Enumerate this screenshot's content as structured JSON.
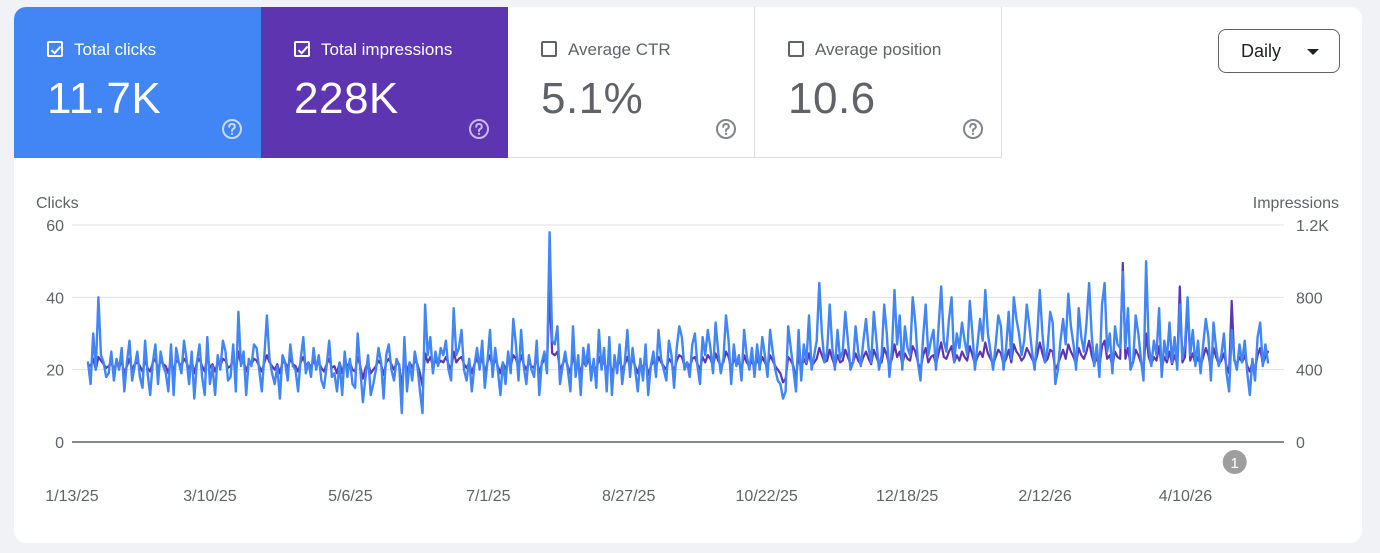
{
  "cards": [
    {
      "label": "Total clicks",
      "value": "11.7K",
      "checked": true,
      "color": "#4285f4"
    },
    {
      "label": "Total impressions",
      "value": "228K",
      "checked": true,
      "color": "#5e35b1"
    },
    {
      "label": "Average CTR",
      "value": "5.1%",
      "checked": false
    },
    {
      "label": "Average position",
      "value": "10.6",
      "checked": false
    }
  ],
  "period_selector": {
    "label": "Daily"
  },
  "annotation": {
    "label": "1",
    "date": "4/30/26"
  },
  "chart_data": {
    "type": "line",
    "x_start": "1/13/25",
    "x_end": "5/20/26",
    "x_tick_labels": [
      "1/13/25",
      "3/10/25",
      "5/6/25",
      "7/1/25",
      "8/27/25",
      "10/22/25",
      "12/18/25",
      "2/12/26",
      "4/10/26"
    ],
    "left_axis": {
      "label": "Clicks",
      "ticks": [
        "0",
        "20",
        "40",
        "60"
      ],
      "range": [
        0,
        60
      ]
    },
    "right_axis": {
      "label": "Impressions",
      "ticks": [
        "0",
        "400",
        "800",
        "1.2K"
      ],
      "range": [
        0,
        1200
      ]
    },
    "grid": true,
    "series": [
      {
        "axis": "left",
        "color": "#4285f4",
        "values": [
          22,
          16,
          30,
          20,
          40,
          24,
          22,
          18,
          19,
          25,
          17,
          23,
          20,
          26,
          14,
          22,
          28,
          17,
          21,
          25,
          18,
          15,
          28,
          19,
          13,
          22,
          27,
          16,
          25,
          21,
          19,
          14,
          27,
          13,
          26,
          22,
          19,
          28,
          23,
          16,
          25,
          12,
          22,
          27,
          18,
          13,
          29,
          16,
          21,
          13,
          24,
          20,
          28,
          25,
          17,
          18,
          27,
          14,
          36,
          21,
          25,
          13,
          23,
          21,
          27,
          26,
          20,
          14,
          24,
          35,
          23,
          19,
          16,
          21,
          12,
          24,
          22,
          17,
          27,
          21,
          20,
          14,
          23,
          29,
          19,
          22,
          18,
          26,
          20,
          24,
          17,
          15,
          21,
          28,
          18,
          19,
          14,
          22,
          13,
          25,
          18,
          23,
          16,
          15,
          30,
          20,
          11,
          18,
          24,
          13,
          16,
          20,
          26,
          22,
          12,
          24,
          27,
          20,
          17,
          23,
          21,
          8,
          29,
          14,
          22,
          17,
          25,
          21,
          14,
          8,
          38,
          24,
          29,
          19,
          25,
          21,
          26,
          24,
          28,
          20,
          17,
          37,
          24,
          26,
          31,
          20,
          17,
          23,
          14,
          21,
          26,
          20,
          28,
          15,
          22,
          31,
          18,
          26,
          20,
          13,
          22,
          16,
          25,
          19,
          34,
          27,
          17,
          31,
          21,
          16,
          24,
          20,
          18,
          28,
          13,
          22,
          25,
          19,
          58,
          28,
          27,
          32,
          16,
          21,
          25,
          20,
          14,
          32,
          18,
          24,
          13,
          26,
          21,
          27,
          17,
          23,
          15,
          31,
          20,
          26,
          14,
          29,
          13,
          24,
          19,
          27,
          16,
          22,
          31,
          18,
          26,
          20,
          14,
          23,
          17,
          27,
          13,
          21,
          25,
          18,
          31,
          23,
          20,
          17,
          28,
          24,
          15,
          26,
          32,
          29,
          20,
          22,
          18,
          27,
          30,
          21,
          16,
          29,
          24,
          31,
          26,
          19,
          33,
          25,
          19,
          23,
          35,
          28,
          16,
          27,
          21,
          24,
          17,
          31,
          24,
          20,
          26,
          18,
          27,
          20,
          29,
          24,
          18,
          31,
          25,
          20,
          17,
          16,
          12,
          14,
          32,
          26,
          20,
          14,
          31,
          17,
          27,
          22,
          35,
          20,
          24,
          28,
          44,
          30,
          22,
          25,
          38,
          26,
          20,
          31,
          23,
          25,
          36,
          28,
          20,
          22,
          32,
          25,
          21,
          28,
          34,
          26,
          22,
          36,
          28,
          20,
          24,
          38,
          30,
          18,
          26,
          42,
          27,
          35,
          20,
          32,
          26,
          24,
          40,
          33,
          22,
          17,
          29,
          38,
          24,
          28,
          31,
          20,
          32,
          43,
          28,
          25,
          34,
          40,
          22,
          30,
          26,
          33,
          28,
          24,
          39,
          30,
          20,
          27,
          34,
          28,
          42,
          30,
          25,
          20,
          27,
          35,
          32,
          20,
          26,
          36,
          23,
          40,
          34,
          30,
          24,
          28,
          38,
          32,
          25,
          20,
          29,
          42,
          30,
          22,
          26,
          36,
          33,
          16,
          20,
          28,
          34,
          27,
          41,
          32,
          27,
          20,
          37,
          29,
          25,
          33,
          44,
          30,
          21,
          27,
          18,
          38,
          44,
          25,
          30,
          19,
          32,
          27,
          26,
          47,
          26,
          37,
          20,
          22,
          35,
          30,
          23,
          17,
          50,
          27,
          21,
          28,
          24,
          37,
          18,
          28,
          23,
          33,
          22,
          29,
          20,
          38,
          23,
          27,
          40,
          24,
          31,
          21,
          28,
          19,
          27,
          34,
          29,
          17,
          33,
          26,
          21,
          24,
          30,
          19,
          14,
          31,
          23,
          20,
          27,
          22,
          28,
          19,
          13,
          23,
          17,
          29,
          33,
          21,
          27,
          22
        ],
        "smoothing": 1
      },
      {
        "axis": "right",
        "color": "#5e35b1",
        "values": [
          430,
          420,
          460,
          400,
          470,
          450,
          430,
          410,
          420,
          440,
          400,
          440,
          410,
          450,
          380,
          420,
          460,
          400,
          430,
          440,
          420,
          390,
          450,
          410,
          390,
          440,
          460,
          400,
          450,
          430,
          420,
          380,
          460,
          390,
          450,
          440,
          420,
          460,
          440,
          400,
          450,
          380,
          440,
          460,
          420,
          390,
          480,
          410,
          430,
          390,
          440,
          420,
          460,
          450,
          410,
          420,
          460,
          390,
          500,
          430,
          450,
          390,
          440,
          430,
          460,
          450,
          420,
          390,
          440,
          480,
          440,
          420,
          400,
          430,
          380,
          440,
          440,
          410,
          460,
          430,
          420,
          390,
          440,
          470,
          420,
          440,
          410,
          450,
          420,
          440,
          410,
          390,
          430,
          460,
          410,
          420,
          380,
          440,
          380,
          450,
          420,
          440,
          400,
          390,
          470,
          420,
          350,
          410,
          440,
          380,
          400,
          420,
          450,
          430,
          370,
          440,
          460,
          430,
          400,
          440,
          430,
          300,
          460,
          390,
          440,
          410,
          450,
          430,
          380,
          310,
          490,
          440,
          470,
          420,
          450,
          430,
          450,
          440,
          470,
          430,
          400,
          500,
          440,
          460,
          470,
          430,
          410,
          440,
          380,
          430,
          460,
          420,
          470,
          380,
          440,
          480,
          410,
          460,
          420,
          380,
          440,
          400,
          450,
          420,
          480,
          460,
          410,
          480,
          430,
          400,
          440,
          420,
          410,
          470,
          380,
          430,
          460,
          420,
          830,
          490,
          480,
          500,
          400,
          430,
          460,
          420,
          380,
          480,
          410,
          440,
          380,
          450,
          420,
          460,
          400,
          430,
          390,
          470,
          420,
          450,
          380,
          470,
          370,
          440,
          410,
          460,
          400,
          430,
          470,
          410,
          460,
          420,
          380,
          440,
          400,
          460,
          370,
          420,
          450,
          410,
          470,
          440,
          420,
          400,
          460,
          440,
          390,
          450,
          480,
          470,
          420,
          440,
          410,
          460,
          470,
          430,
          400,
          470,
          440,
          480,
          460,
          420,
          490,
          450,
          420,
          440,
          500,
          470,
          400,
          460,
          430,
          440,
          400,
          480,
          440,
          420,
          450,
          410,
          460,
          420,
          470,
          440,
          410,
          480,
          450,
          420,
          400,
          380,
          330,
          350,
          470,
          450,
          420,
          350,
          480,
          400,
          460,
          430,
          490,
          420,
          440,
          460,
          520,
          480,
          440,
          450,
          510,
          460,
          420,
          480,
          440,
          450,
          510,
          470,
          430,
          440,
          490,
          450,
          430,
          470,
          500,
          460,
          430,
          510,
          470,
          430,
          440,
          520,
          480,
          420,
          460,
          540,
          470,
          500,
          430,
          490,
          460,
          450,
          530,
          500,
          440,
          400,
          480,
          520,
          440,
          470,
          480,
          430,
          490,
          550,
          470,
          460,
          500,
          530,
          440,
          480,
          450,
          500,
          470,
          450,
          530,
          480,
          430,
          470,
          500,
          470,
          550,
          490,
          460,
          430,
          470,
          510,
          490,
          430,
          460,
          510,
          440,
          540,
          500,
          480,
          450,
          470,
          520,
          490,
          460,
          430,
          480,
          550,
          490,
          440,
          460,
          510,
          500,
          400,
          430,
          470,
          510,
          460,
          540,
          500,
          470,
          430,
          520,
          480,
          460,
          500,
          560,
          480,
          430,
          470,
          410,
          530,
          560,
          460,
          480,
          420,
          500,
          470,
          460,
          990,
          460,
          520,
          430,
          440,
          510,
          480,
          440,
          400,
          600,
          470,
          430,
          470,
          450,
          530,
          410,
          470,
          440,
          500,
          430,
          480,
          430,
          860,
          440,
          470,
          770,
          450,
          490,
          430,
          470,
          420,
          470,
          520,
          480,
          400,
          520,
          470,
          430,
          450,
          490,
          420,
          380,
          780,
          450,
          430,
          470,
          440,
          480,
          420,
          390,
          440,
          400,
          480,
          520,
          430,
          470,
          500
        ]
      }
    ]
  }
}
